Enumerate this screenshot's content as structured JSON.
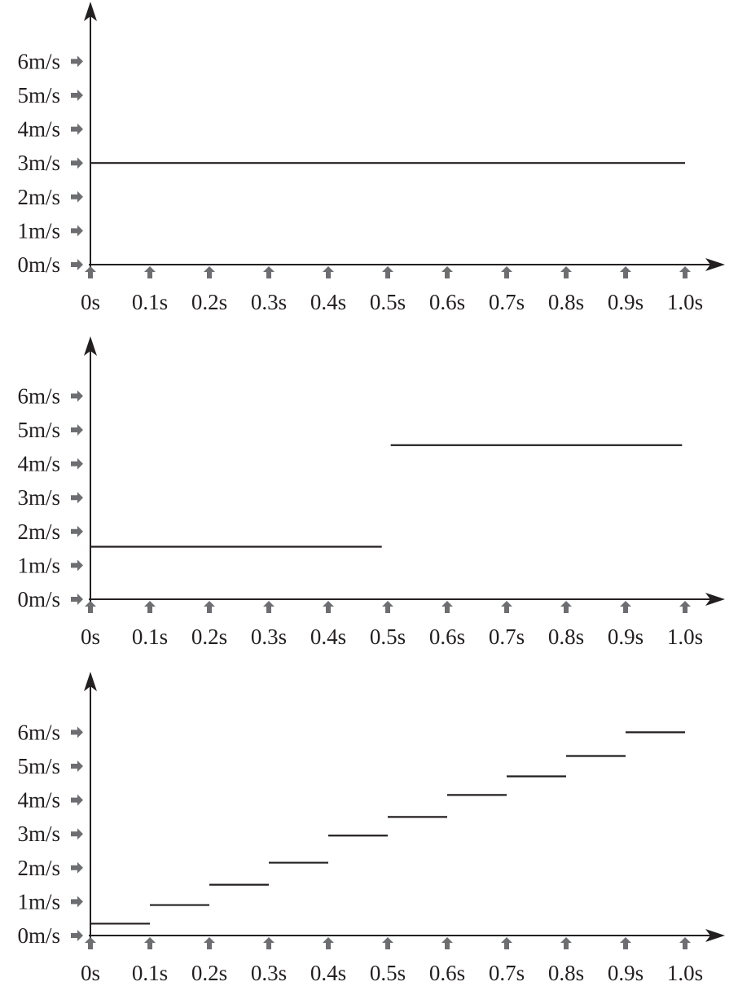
{
  "chart_data": [
    {
      "type": "line",
      "x_ticks": [
        "0s",
        "0.1s",
        "0.2s",
        "0.3s",
        "0.4s",
        "0.5s",
        "0.6s",
        "0.7s",
        "0.8s",
        "0.9s",
        "1.0s"
      ],
      "y_ticks": [
        "0m/s",
        "1m/s",
        "2m/s",
        "3m/s",
        "4m/s",
        "5m/s",
        "6m/s"
      ],
      "xlim": [
        0,
        1.0
      ],
      "ylim": [
        0,
        6
      ],
      "segments": [
        {
          "x0": 0.0,
          "x1": 1.0,
          "y": 3.0
        }
      ]
    },
    {
      "type": "line",
      "x_ticks": [
        "0s",
        "0.1s",
        "0.2s",
        "0.3s",
        "0.4s",
        "0.5s",
        "0.6s",
        "0.7s",
        "0.8s",
        "0.9s",
        "1.0s"
      ],
      "y_ticks": [
        "0m/s",
        "1m/s",
        "2m/s",
        "3m/s",
        "4m/s",
        "5m/s",
        "6m/s"
      ],
      "xlim": [
        0,
        1.0
      ],
      "ylim": [
        0,
        6
      ],
      "segments": [
        {
          "x0": 0.0,
          "x1": 0.49,
          "y": 1.55
        },
        {
          "x0": 0.505,
          "x1": 0.995,
          "y": 4.55
        }
      ]
    },
    {
      "type": "line",
      "x_ticks": [
        "0s",
        "0.1s",
        "0.2s",
        "0.3s",
        "0.4s",
        "0.5s",
        "0.6s",
        "0.7s",
        "0.8s",
        "0.9s",
        "1.0s"
      ],
      "y_ticks": [
        "0m/s",
        "1m/s",
        "2m/s",
        "3m/s",
        "4m/s",
        "5m/s",
        "6m/s"
      ],
      "xlim": [
        0,
        1.0
      ],
      "ylim": [
        0,
        6
      ],
      "segments": [
        {
          "x0": 0.0,
          "x1": 0.1,
          "y": 0.35
        },
        {
          "x0": 0.1,
          "x1": 0.2,
          "y": 0.9
        },
        {
          "x0": 0.2,
          "x1": 0.3,
          "y": 1.5
        },
        {
          "x0": 0.3,
          "x1": 0.4,
          "y": 2.15
        },
        {
          "x0": 0.4,
          "x1": 0.5,
          "y": 2.95
        },
        {
          "x0": 0.5,
          "x1": 0.6,
          "y": 3.5
        },
        {
          "x0": 0.6,
          "x1": 0.7,
          "y": 4.15
        },
        {
          "x0": 0.7,
          "x1": 0.8,
          "y": 4.7
        },
        {
          "x0": 0.8,
          "x1": 0.9,
          "y": 5.3
        },
        {
          "x0": 0.9,
          "x1": 1.0,
          "y": 6.0
        }
      ]
    }
  ]
}
